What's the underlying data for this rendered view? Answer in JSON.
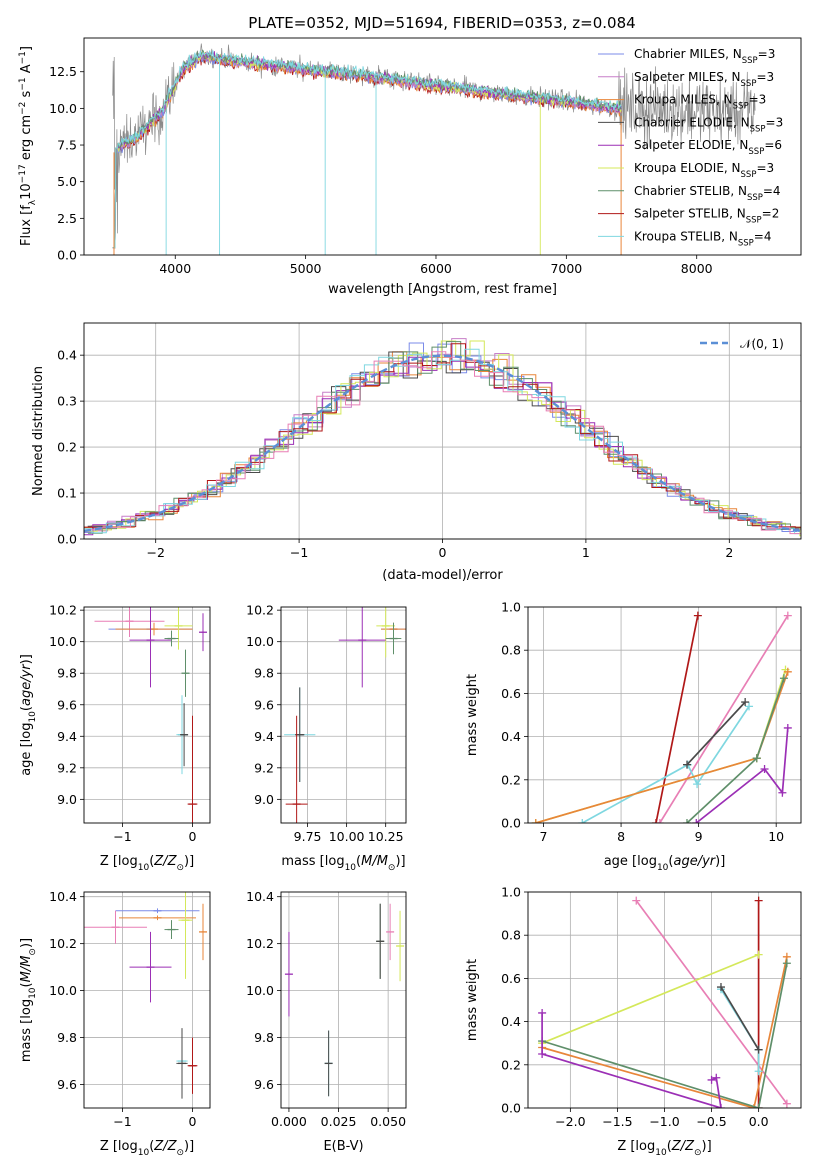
{
  "colors": {
    "Chabrier MILES": "#7b8be8",
    "Salpeter MILES": "#c77fc8",
    "Kroupa MILES": "#e8863a",
    "Chabrier ELODIE": "#4a4a4a",
    "Salpeter ELODIE": "#9b2fb5",
    "Kroupa ELODIE": "#d4e85a",
    "Chabrier STELIB": "#5f8f6a",
    "Salpeter STELIB": "#b01818",
    "Kroupa STELIB": "#7fd7e0",
    "pink": "#e87fb5",
    "gaussian": "#5b8fd6"
  },
  "chart_data": [
    {
      "type": "line",
      "title": "PLATE=0352, MJD=51694, FIBERID=0353, z=0.084",
      "xlabel": "wavelength [Angstrom, rest frame]",
      "ylabel": "Flux [f_λ 10^-17 erg cm^-2 s^-1 A^-1]",
      "xlim": [
        3300,
        8800
      ],
      "ylim": [
        0,
        14.8
      ],
      "xticks": [
        "4000",
        "5000",
        "6000",
        "7000",
        "8000"
      ],
      "yticks": [
        "0.0",
        "2.5",
        "5.0",
        "7.5",
        "10.0",
        "12.5"
      ],
      "grid": false,
      "legend_position": "upper-right",
      "legend": [
        {
          "name": "Chabrier MILES, N",
          "sub": "SSP",
          "val": "=3"
        },
        {
          "name": "Salpeter MILES, N",
          "sub": "SSP",
          "val": "=3"
        },
        {
          "name": "Kroupa MILES, N",
          "sub": "SSP",
          "val": "=3"
        },
        {
          "name": "Chabrier ELODIE, N",
          "sub": "SSP",
          "val": "=3"
        },
        {
          "name": "Salpeter ELODIE, N",
          "sub": "SSP",
          "val": "=6"
        },
        {
          "name": "Kroupa ELODIE, N",
          "sub": "SSP",
          "val": "=3"
        },
        {
          "name": "Chabrier STELIB, N",
          "sub": "SSP",
          "val": "=4"
        },
        {
          "name": "Salpeter STELIB, N",
          "sub": "SSP",
          "val": "=2"
        },
        {
          "name": "Kroupa STELIB, N",
          "sub": "SSP",
          "val": "=4"
        }
      ],
      "continuum": [
        [
          3520,
          7.2
        ],
        [
          3700,
          8.0
        ],
        [
          3900,
          9.8
        ],
        [
          4050,
          12.6
        ],
        [
          4200,
          13.6
        ],
        [
          4500,
          13.2
        ],
        [
          5000,
          12.7
        ],
        [
          5500,
          12.2
        ],
        [
          6000,
          11.6
        ],
        [
          6500,
          11.0
        ],
        [
          7000,
          10.5
        ],
        [
          7400,
          10.0
        ]
      ],
      "data_x": [
        3520,
        8450
      ],
      "spikes_down": [
        3930,
        4340,
        5150,
        5540,
        6800
      ]
    },
    {
      "type": "line",
      "xlabel": "(data-model)/error",
      "ylabel": "Normed distribution",
      "xlim": [
        -2.5,
        2.5
      ],
      "ylim": [
        0,
        0.47
      ],
      "xticks": [
        "−2",
        "−1",
        "0",
        "1",
        "2"
      ],
      "yticks": [
        "0.0",
        "0.1",
        "0.2",
        "0.3",
        "0.4"
      ],
      "grid": true,
      "legend_position": "upper-right",
      "legend": [
        {
          "name": "𝒩(0, 1)"
        }
      ],
      "bins": 50
    },
    {
      "type": "scatter",
      "xlabel": "Z [log10(Z/Z☉)]",
      "ylabel": "age [log10(age/yr)]",
      "xlim": [
        -1.55,
        0.25
      ],
      "ylim": [
        8.85,
        10.22
      ],
      "xticks": [
        {
          "v": -1,
          "t": "−1"
        },
        {
          "v": 0,
          "t": "0"
        }
      ],
      "yticks": [
        "9.0",
        "9.2",
        "9.4",
        "9.6",
        "9.8",
        "10.0",
        "10.2"
      ],
      "points": [
        {
          "x": -0.9,
          "y": 10.13,
          "xe": 0.5,
          "ye": 0.1,
          "c": "pink"
        },
        {
          "x": -0.6,
          "y": 10.08,
          "xe": 0.6,
          "ye": 0.04,
          "c": "Chabrier MILES"
        },
        {
          "x": -0.55,
          "y": 10.08,
          "xe": 0.55,
          "ye": 0.04,
          "c": "Kroupa MILES"
        },
        {
          "x": -0.6,
          "y": 10.01,
          "xe": 0.3,
          "ye": 0.3,
          "c": "Salpeter ELODIE"
        },
        {
          "x": -0.2,
          "y": 10.1,
          "xe": 0.2,
          "ye": 0.15,
          "c": "Kroupa ELODIE"
        },
        {
          "x": -0.3,
          "y": 10.02,
          "xe": 0.1,
          "ye": 0.05,
          "c": "Chabrier STELIB"
        },
        {
          "x": -0.1,
          "y": 9.8,
          "xe": 0.02,
          "ye": 0.15,
          "c": "Chabrier STELIB"
        },
        {
          "x": -0.15,
          "y": 9.41,
          "xe": 0.08,
          "ye": 0.25,
          "c": "Kroupa STELIB"
        },
        {
          "x": -0.12,
          "y": 9.41,
          "xe": 0.05,
          "ye": 0.2,
          "c": "Chabrier ELODIE"
        },
        {
          "x": 0.0,
          "y": 8.97,
          "xe": 0.07,
          "ye": 0.56,
          "c": "Salpeter STELIB"
        },
        {
          "x": 0.15,
          "y": 10.06,
          "xe": 0.02,
          "ye": 0.12,
          "c": "Salpeter ELODIE"
        }
      ]
    },
    {
      "type": "scatter",
      "xlabel": "mass [log10(M/M☉)]",
      "ylabel": "",
      "xlim": [
        9.58,
        10.38
      ],
      "ylim": [
        8.85,
        10.22
      ],
      "xticks": [
        {
          "v": 9.75,
          "t": "9.75"
        },
        {
          "v": 10.0,
          "t": "10.00"
        },
        {
          "v": 10.25,
          "t": "10.25"
        }
      ],
      "yticks": [
        "9.0",
        "9.2",
        "9.4",
        "9.6",
        "9.8",
        "10.0",
        "10.2"
      ],
      "points": [
        {
          "x": 10.3,
          "y": 10.08,
          "xe": 0.08,
          "ye": 0.04,
          "c": "Chabrier MILES"
        },
        {
          "x": 10.3,
          "y": 10.08,
          "xe": 0.08,
          "ye": 0.04,
          "c": "Kroupa MILES"
        },
        {
          "x": 10.25,
          "y": 10.1,
          "xe": 0.06,
          "ye": 0.2,
          "c": "Kroupa ELODIE"
        },
        {
          "x": 10.1,
          "y": 10.01,
          "xe": 0.15,
          "ye": 0.3,
          "c": "Salpeter ELODIE"
        },
        {
          "x": 10.3,
          "y": 10.02,
          "xe": 0.05,
          "ye": 0.1,
          "c": "Chabrier STELIB"
        },
        {
          "x": 9.7,
          "y": 9.41,
          "xe": 0.1,
          "ye": 0.3,
          "c": "Kroupa STELIB"
        },
        {
          "x": 9.7,
          "y": 9.41,
          "xe": 0.03,
          "ye": 0.3,
          "c": "Chabrier ELODIE"
        },
        {
          "x": 9.68,
          "y": 8.97,
          "xe": 0.07,
          "ye": 0.56,
          "c": "Salpeter STELIB"
        }
      ]
    },
    {
      "type": "line",
      "xlabel": "age [log10(age/yr)]",
      "ylabel": "mass weight",
      "xlim": [
        6.8,
        10.32
      ],
      "ylim": [
        0,
        1.0
      ],
      "xticks": [
        {
          "v": 7,
          "t": "7"
        },
        {
          "v": 8,
          "t": "8"
        },
        {
          "v": 9,
          "t": "9"
        },
        {
          "v": 10,
          "t": "10"
        }
      ],
      "yticks": [
        "0.0",
        "0.2",
        "0.4",
        "0.6",
        "0.8",
        "1.0"
      ],
      "grid": true,
      "series": [
        {
          "c": "Salpeter STELIB",
          "x": [
            8.45,
            8.99
          ],
          "y": [
            0.0,
            0.96
          ]
        },
        {
          "c": "pink",
          "x": [
            8.5,
            10.15
          ],
          "y": [
            0.0,
            0.96
          ]
        },
        {
          "c": "Kroupa STELIB",
          "x": [
            7.5,
            8.86,
            8.98,
            9.65
          ],
          "y": [
            0.0,
            0.27,
            0.18,
            0.54
          ]
        },
        {
          "c": "Chabrier ELODIE",
          "x": [
            8.85,
            9.6
          ],
          "y": [
            0.27,
            0.56
          ]
        },
        {
          "c": "Kroupa ELODIE",
          "x": [
            6.9,
            9.75,
            10.12
          ],
          "y": [
            0.0,
            0.3,
            0.71
          ]
        },
        {
          "c": "Kroupa MILES",
          "x": [
            6.9,
            9.75,
            10.15
          ],
          "y": [
            0.0,
            0.3,
            0.7
          ]
        },
        {
          "c": "Chabrier STELIB",
          "x": [
            8.85,
            9.75,
            10.1
          ],
          "y": [
            0.0,
            0.3,
            0.67
          ]
        },
        {
          "c": "Salpeter ELODIE",
          "x": [
            8.97,
            9.85,
            10.08,
            10.15
          ],
          "y": [
            0.0,
            0.25,
            0.14,
            0.44
          ]
        }
      ]
    },
    {
      "type": "scatter",
      "xlabel": "Z [log10(Z/Z☉)]",
      "ylabel": "mass [log10(M/M☉)]",
      "xlim": [
        -1.55,
        0.25
      ],
      "ylim": [
        9.5,
        10.42
      ],
      "xticks": [
        {
          "v": -1,
          "t": "−1"
        },
        {
          "v": 0,
          "t": "0"
        }
      ],
      "yticks": [
        "9.6",
        "9.8",
        "10.0",
        "10.2",
        "10.4"
      ],
      "points": [
        {
          "x": -0.5,
          "y": 10.34,
          "xe": 0.6,
          "ye": 0.01,
          "c": "Chabrier MILES"
        },
        {
          "x": -0.5,
          "y": 10.31,
          "xe": 0.55,
          "ye": 0.01,
          "c": "Kroupa MILES"
        },
        {
          "x": -1.1,
          "y": 10.27,
          "xe": 0.45,
          "ye": 0.07,
          "c": "pink"
        },
        {
          "x": -0.3,
          "y": 10.26,
          "xe": 0.1,
          "ye": 0.04,
          "c": "Chabrier STELIB"
        },
        {
          "x": -0.1,
          "y": 10.3,
          "xe": 0.1,
          "ye": 0.25,
          "c": "Kroupa ELODIE"
        },
        {
          "x": -0.6,
          "y": 10.1,
          "xe": 0.3,
          "ye": 0.15,
          "c": "Salpeter ELODIE"
        },
        {
          "x": -0.15,
          "y": 9.7,
          "xe": 0.08,
          "ye": 0.13,
          "c": "Kroupa STELIB"
        },
        {
          "x": -0.15,
          "y": 9.69,
          "xe": 0.08,
          "ye": 0.15,
          "c": "Chabrier ELODIE"
        },
        {
          "x": 0.0,
          "y": 9.68,
          "xe": 0.07,
          "ye": 0.12,
          "c": "Salpeter STELIB"
        },
        {
          "x": 0.15,
          "y": 10.25,
          "xe": 0.02,
          "ye": 0.12,
          "c": "Kroupa MILES"
        }
      ]
    },
    {
      "type": "scatter",
      "xlabel": "E(B-V)",
      "ylabel": "",
      "xlim": [
        -0.004,
        0.059
      ],
      "ylim": [
        9.5,
        10.42
      ],
      "xticks": [
        {
          "v": 0,
          "t": "0.000"
        },
        {
          "v": 0.025,
          "t": "0.025"
        },
        {
          "v": 0.05,
          "t": "0.050"
        }
      ],
      "yticks": [
        "9.6",
        "9.8",
        "10.0",
        "10.2",
        "10.4"
      ],
      "points": [
        {
          "x": 0.0,
          "y": 10.07,
          "xe": 0,
          "ye": 0.18,
          "c": "Salpeter ELODIE"
        },
        {
          "x": 0.02,
          "y": 9.69,
          "xe": 0,
          "ye": 0.14,
          "c": "Kroupa STELIB"
        },
        {
          "x": 0.02,
          "y": 9.69,
          "xe": 0,
          "ye": 0.14,
          "c": "Chabrier ELODIE"
        },
        {
          "x": 0.046,
          "y": 10.21,
          "xe": 0,
          "ye": 0.16,
          "c": "Chabrier STELIB"
        },
        {
          "x": 0.046,
          "y": 10.21,
          "xe": 0,
          "ye": 0.16,
          "c": "Chabrier ELODIE"
        },
        {
          "x": 0.051,
          "y": 10.25,
          "xe": 0,
          "ye": 0.12,
          "c": "pink"
        },
        {
          "x": 0.056,
          "y": 10.19,
          "xe": 0,
          "ye": 0.15,
          "c": "Kroupa ELODIE"
        }
      ]
    },
    {
      "type": "line",
      "xlabel": "Z [log10(Z/Z☉)]",
      "ylabel": "mass weight",
      "xlim": [
        -2.45,
        0.45
      ],
      "ylim": [
        0,
        1.0
      ],
      "xticks": [
        {
          "v": -2,
          "t": "−2.0"
        },
        {
          "v": -1.5,
          "t": "−1.5"
        },
        {
          "v": -1,
          "t": "−1.0"
        },
        {
          "v": -0.5,
          "t": "−0.5"
        },
        {
          "v": 0,
          "t": "0.0"
        }
      ],
      "yticks": [
        "0.0",
        "0.2",
        "0.4",
        "0.6",
        "0.8",
        "1.0"
      ],
      "grid": true,
      "series": [
        {
          "c": "pink",
          "x": [
            -1.3,
            0.3
          ],
          "y": [
            0.96,
            0.02
          ]
        },
        {
          "c": "Salpeter STELIB",
          "x": [
            0.0,
            0.0
          ],
          "y": [
            0.0,
            0.96
          ]
        },
        {
          "c": "Kroupa ELODIE",
          "x": [
            -2.3,
            0.0
          ],
          "y": [
            0.3,
            0.71
          ]
        },
        {
          "c": "Kroupa MILES",
          "x": [
            -2.3,
            -0.05,
            0.3
          ],
          "y": [
            0.28,
            0.0,
            0.7
          ]
        },
        {
          "c": "Chabrier STELIB",
          "x": [
            -2.3,
            0.0,
            0.3
          ],
          "y": [
            0.31,
            0.0,
            0.67
          ]
        },
        {
          "c": "Salpeter ELODIE",
          "x": [
            -2.3,
            -2.3,
            -0.4,
            -0.45,
            -0.5
          ],
          "y": [
            0.44,
            0.25,
            0.0,
            0.14,
            0.13
          ]
        },
        {
          "c": "Kroupa STELIB",
          "x": [
            -0.4,
            0.0,
            0.0
          ],
          "y": [
            0.55,
            0.27,
            0.17
          ]
        },
        {
          "c": "Chabrier ELODIE",
          "x": [
            -0.4,
            0.0
          ],
          "y": [
            0.56,
            0.27
          ]
        }
      ]
    }
  ]
}
